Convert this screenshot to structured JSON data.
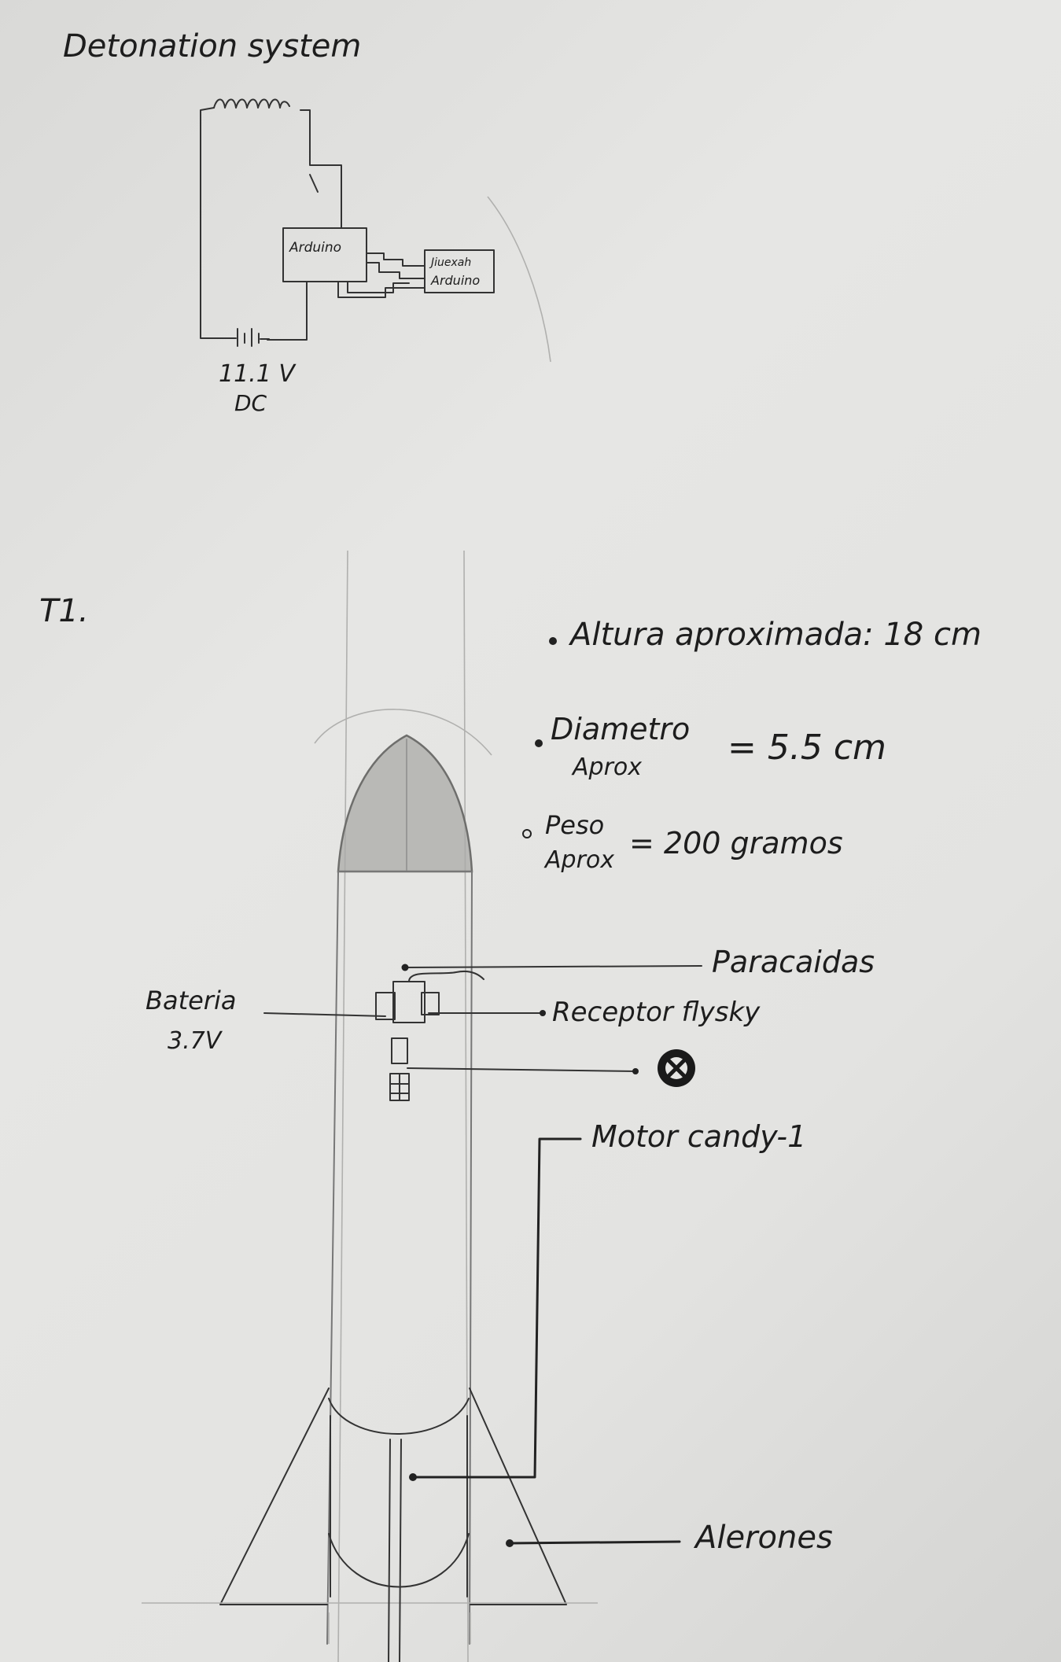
{
  "detonation": {
    "title": "Detonation system",
    "arduino_label": "Arduino",
    "receiver_label_line1": "Jiuexah",
    "receiver_label_line2": "Arduino",
    "voltage": "11.1 V",
    "current_type": "DC"
  },
  "rocket": {
    "heading": "T1.",
    "specs": {
      "height": "Altura aproximada: 18 cm",
      "diameter_label_line1": "Diametro",
      "diameter_label_line2": "Aprox",
      "diameter_value": "= 5.5 cm",
      "weight_label_line1": "Peso",
      "weight_label_line2": "Aprox",
      "weight_value": "= 200 gramos"
    },
    "labels": {
      "parachute": "Paracaidas",
      "battery_line1": "Bateria",
      "battery_line2": "3.7V",
      "receiver": "Receptor flysky",
      "motor": "Motor candy-1",
      "fins": "Alerones"
    }
  }
}
